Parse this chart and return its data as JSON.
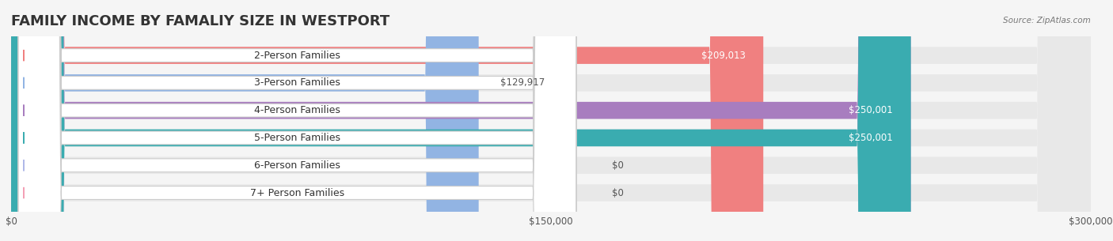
{
  "title": "FAMILY INCOME BY FAMALIY SIZE IN WESTPORT",
  "source": "Source: ZipAtlas.com",
  "categories": [
    "2-Person Families",
    "3-Person Families",
    "4-Person Families",
    "5-Person Families",
    "6-Person Families",
    "7+ Person Families"
  ],
  "values": [
    209013,
    129917,
    250001,
    250001,
    0,
    0
  ],
  "bar_colors": [
    "#F08080",
    "#92B4E3",
    "#A87DBF",
    "#3AACB0",
    "#B0B8E8",
    "#F4A0B5"
  ],
  "label_colors": [
    "white",
    "#555555",
    "white",
    "white",
    "#555555",
    "#555555"
  ],
  "value_labels": [
    "$209,013",
    "$129,917",
    "$250,001",
    "$250,001",
    "$0",
    "$0"
  ],
  "xmax": 300000,
  "xticks": [
    0,
    150000,
    300000
  ],
  "xtick_labels": [
    "$0",
    "$150,000",
    "$300,000"
  ],
  "background_color": "#f5f5f5",
  "bar_bg_color": "#e8e8e8",
  "title_fontsize": 13,
  "label_fontsize": 9,
  "value_fontsize": 8.5
}
